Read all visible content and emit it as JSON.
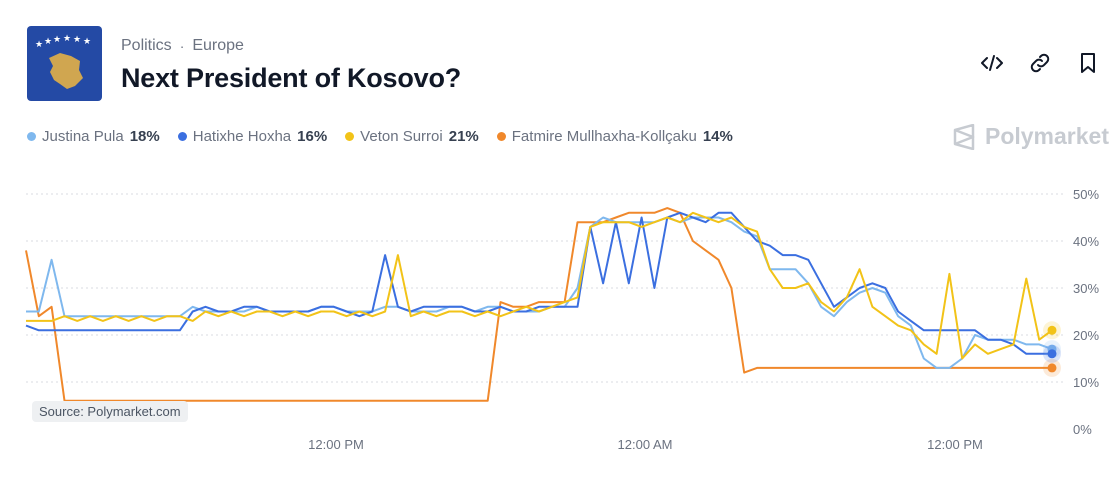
{
  "market": {
    "breadcrumb": [
      "Politics",
      "Europe"
    ],
    "title": "Next President of Kosovo?",
    "icon": "kosovo-flag-icon",
    "flag_colors": {
      "blue": "#244aa5",
      "gold": "#d0a650",
      "star": "#ffffff"
    }
  },
  "actions": [
    {
      "name": "embed-icon",
      "label": "</>"
    },
    {
      "name": "link-icon",
      "label": "link"
    },
    {
      "name": "bookmark-icon",
      "label": "bookmark"
    }
  ],
  "brand": {
    "label": "Polymarket",
    "color": "#c7cbd1"
  },
  "source": "Source: Polymarket.com",
  "chart_data": {
    "type": "line",
    "x_ticks": [
      "12:00 PM",
      "12:00 AM",
      "12:00 PM"
    ],
    "ylim": [
      0,
      50
    ],
    "y_ticks": [
      "0%",
      "10%",
      "20%",
      "30%",
      "40%",
      "50%"
    ],
    "grid": true,
    "legend_position": "top-left",
    "series": [
      {
        "name": "Justina Pula",
        "value_label": "18%",
        "color": "#7fb8ee",
        "values": [
          25,
          25,
          36,
          24,
          24,
          24,
          24,
          24,
          24,
          24,
          24,
          24,
          24,
          26,
          25,
          25,
          25,
          25,
          26,
          25,
          25,
          25,
          25,
          26,
          26,
          25,
          25,
          25,
          26,
          26,
          25,
          25,
          25,
          26,
          26,
          25,
          26,
          26,
          25,
          25,
          25,
          26,
          26,
          30,
          43,
          45,
          44,
          44,
          44,
          44,
          45,
          44,
          45,
          45,
          45,
          44,
          42,
          41,
          34,
          34,
          34,
          31,
          26,
          24,
          27,
          29,
          30,
          29,
          24,
          22,
          15,
          13,
          13,
          15,
          20,
          19,
          19,
          19,
          18,
          18,
          17
        ]
      },
      {
        "name": "Hatixhe Hoxha",
        "value_label": "16%",
        "color": "#3b6fe0",
        "values": [
          22,
          21,
          21,
          21,
          21,
          21,
          21,
          21,
          21,
          21,
          21,
          21,
          21,
          25,
          26,
          25,
          25,
          26,
          26,
          25,
          25,
          25,
          25,
          26,
          26,
          25,
          24,
          25,
          37,
          26,
          25,
          26,
          26,
          26,
          26,
          25,
          25,
          26,
          25,
          25,
          26,
          26,
          26,
          26,
          43,
          31,
          44,
          31,
          45,
          30,
          45,
          46,
          45,
          44,
          46,
          46,
          43,
          40,
          39,
          37,
          37,
          36,
          31,
          26,
          28,
          30,
          31,
          30,
          25,
          23,
          21,
          21,
          21,
          21,
          21,
          19,
          19,
          18,
          16,
          16,
          16
        ]
      },
      {
        "name": "Veton Surroi",
        "value_label": "21%",
        "color": "#f2c318",
        "values": [
          23,
          23,
          23,
          24,
          23,
          24,
          23,
          24,
          23,
          24,
          23,
          24,
          24,
          23,
          25,
          24,
          25,
          24,
          25,
          25,
          24,
          25,
          24,
          25,
          25,
          24,
          25,
          24,
          25,
          37,
          24,
          25,
          24,
          25,
          25,
          24,
          25,
          24,
          25,
          26,
          25,
          26,
          27,
          28,
          43,
          44,
          44,
          44,
          43,
          44,
          45,
          44,
          46,
          45,
          44,
          45,
          43,
          42,
          34,
          30,
          30,
          31,
          27,
          25,
          28,
          34,
          26,
          24,
          22,
          21,
          18,
          16,
          33,
          15,
          18,
          16,
          17,
          18,
          32,
          19,
          21
        ]
      },
      {
        "name": "Fatmire Mullhaxha-Kollçaku",
        "value_label": "14%",
        "color": "#f0882b",
        "values": [
          38,
          24,
          26,
          6,
          6,
          6,
          6,
          6,
          6,
          6,
          6,
          6,
          6,
          6,
          6,
          6,
          6,
          6,
          6,
          6,
          6,
          6,
          6,
          6,
          6,
          6,
          6,
          6,
          6,
          6,
          6,
          6,
          6,
          6,
          6,
          6,
          6,
          27,
          26,
          26,
          27,
          27,
          27,
          44,
          44,
          44,
          45,
          46,
          46,
          46,
          47,
          46,
          40,
          38,
          36,
          30,
          12,
          13,
          13,
          13,
          13,
          13,
          13,
          13,
          13,
          13,
          13,
          13,
          13,
          13,
          13,
          13,
          13,
          13,
          13,
          13,
          13,
          13,
          13,
          13,
          13
        ]
      }
    ]
  }
}
